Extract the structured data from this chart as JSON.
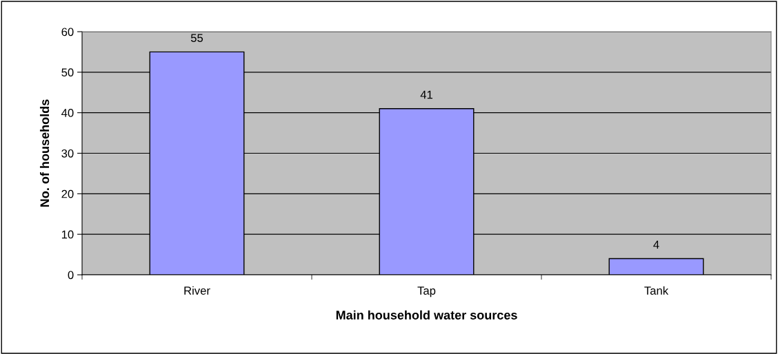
{
  "chart_data": {
    "type": "bar",
    "xlabel": "Main household water sources",
    "ylabel": "No. of households",
    "categories": [
      "River",
      "Tap",
      "Tank"
    ],
    "values": [
      55,
      41,
      4
    ],
    "color": "#9999ff",
    "ylim": [
      0,
      60
    ],
    "yticks": [
      0,
      10,
      20,
      30,
      40,
      50,
      60
    ],
    "grid": "y",
    "data_labels": true
  }
}
